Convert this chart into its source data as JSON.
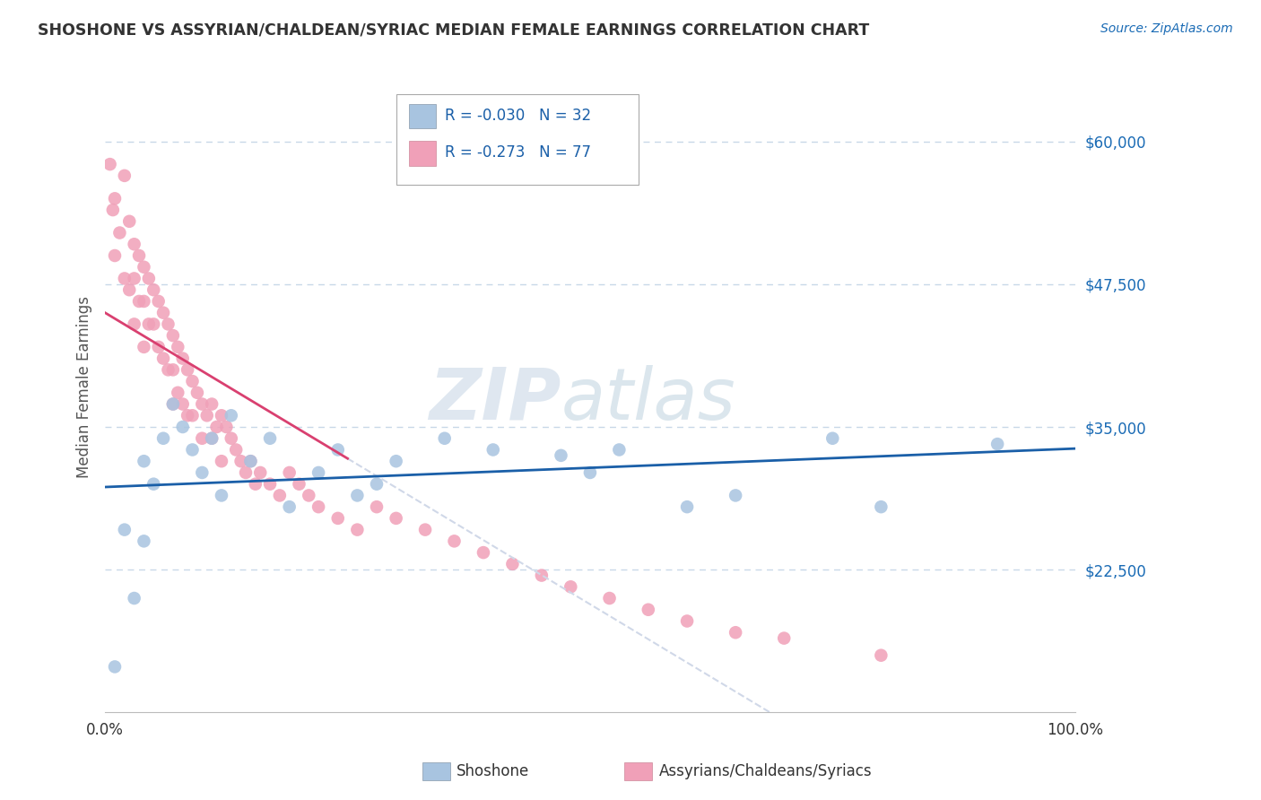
{
  "title": "SHOSHONE VS ASSYRIAN/CHALDEAN/SYRIAC MEDIAN FEMALE EARNINGS CORRELATION CHART",
  "source_text": "Source: ZipAtlas.com",
  "ylabel": "Median Female Earnings",
  "watermark_zip": "ZIP",
  "watermark_atlas": "atlas",
  "legend_r1": "R = -0.030",
  "legend_n1": "N = 32",
  "legend_r2": "R = -0.273",
  "legend_n2": "N = 77",
  "series1_name": "Shoshone",
  "series2_name": "Assyrians/Chaldeans/Syriacs",
  "color1": "#a8c4e0",
  "color2": "#f0a0b8",
  "trendline1_color": "#1a5fa8",
  "trendline2_color": "#d94070",
  "trendline_ext_color": "#d0d8e8",
  "ytick_values": [
    22500,
    35000,
    47500,
    60000
  ],
  "ylim": [
    10000,
    67000
  ],
  "xlim": [
    0.0,
    1.0
  ],
  "background_color": "#ffffff",
  "grid_color": "#c8d8e8",
  "shoshone_x": [
    0.01,
    0.02,
    0.03,
    0.04,
    0.04,
    0.05,
    0.06,
    0.07,
    0.08,
    0.09,
    0.1,
    0.11,
    0.12,
    0.13,
    0.15,
    0.17,
    0.19,
    0.22,
    0.24,
    0.26,
    0.28,
    0.3,
    0.35,
    0.4,
    0.47,
    0.5,
    0.53,
    0.6,
    0.65,
    0.75,
    0.8,
    0.92
  ],
  "shoshone_y": [
    14000,
    26000,
    20000,
    32000,
    25000,
    30000,
    34000,
    37000,
    35000,
    33000,
    31000,
    34000,
    29000,
    36000,
    32000,
    34000,
    28000,
    31000,
    33000,
    29000,
    30000,
    32000,
    34000,
    33000,
    32500,
    31000,
    33000,
    28000,
    29000,
    34000,
    28000,
    33500
  ],
  "assyrian_x": [
    0.005,
    0.008,
    0.01,
    0.01,
    0.015,
    0.02,
    0.02,
    0.025,
    0.025,
    0.03,
    0.03,
    0.03,
    0.035,
    0.035,
    0.04,
    0.04,
    0.04,
    0.045,
    0.045,
    0.05,
    0.05,
    0.055,
    0.055,
    0.06,
    0.06,
    0.065,
    0.065,
    0.07,
    0.07,
    0.07,
    0.075,
    0.075,
    0.08,
    0.08,
    0.085,
    0.085,
    0.09,
    0.09,
    0.095,
    0.1,
    0.1,
    0.105,
    0.11,
    0.11,
    0.115,
    0.12,
    0.12,
    0.125,
    0.13,
    0.135,
    0.14,
    0.145,
    0.15,
    0.155,
    0.16,
    0.17,
    0.18,
    0.19,
    0.2,
    0.21,
    0.22,
    0.24,
    0.26,
    0.28,
    0.3,
    0.33,
    0.36,
    0.39,
    0.42,
    0.45,
    0.48,
    0.52,
    0.56,
    0.6,
    0.65,
    0.7,
    0.8
  ],
  "assyrian_y": [
    58000,
    54000,
    55000,
    50000,
    52000,
    57000,
    48000,
    53000,
    47000,
    51000,
    48000,
    44000,
    50000,
    46000,
    49000,
    46000,
    42000,
    48000,
    44000,
    47000,
    44000,
    46000,
    42000,
    45000,
    41000,
    44000,
    40000,
    43000,
    40000,
    37000,
    42000,
    38000,
    41000,
    37000,
    40000,
    36000,
    39000,
    36000,
    38000,
    37000,
    34000,
    36000,
    37000,
    34000,
    35000,
    36000,
    32000,
    35000,
    34000,
    33000,
    32000,
    31000,
    32000,
    30000,
    31000,
    30000,
    29000,
    31000,
    30000,
    29000,
    28000,
    27000,
    26000,
    28000,
    27000,
    26000,
    25000,
    24000,
    23000,
    22000,
    21000,
    20000,
    19000,
    18000,
    17000,
    16500,
    15000
  ]
}
